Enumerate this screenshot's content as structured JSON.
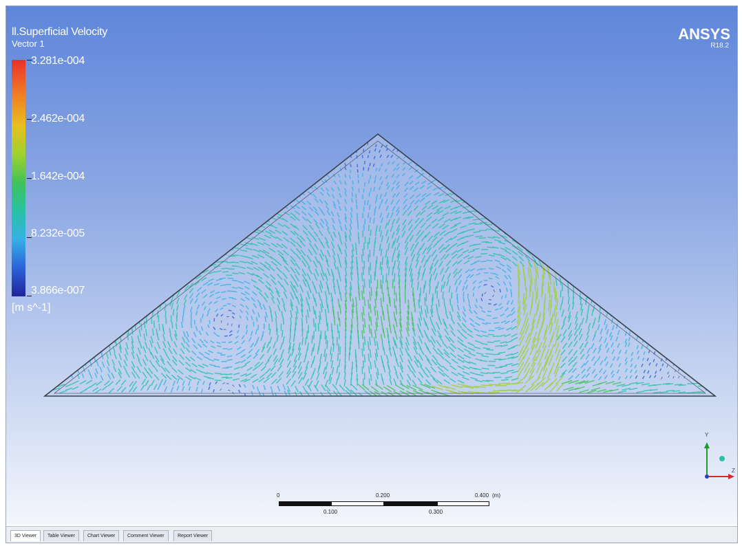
{
  "legend": {
    "title": "ll.Superficial Velocity",
    "subtitle": "Vector 1",
    "ticks": [
      "3.281e-004",
      "2.462e-004",
      "1.642e-004",
      "8.232e-005",
      "3.866e-007"
    ],
    "unit": "[m s^-1]",
    "colors": [
      "#e8312b",
      "#f07a25",
      "#e8c020",
      "#9fd12e",
      "#3fc25a",
      "#27c2a4",
      "#36b0e6",
      "#2a62d8",
      "#20249a"
    ]
  },
  "branding": {
    "logo": "ANSYS",
    "version": "R18.2"
  },
  "scale_bar": {
    "top_labels": [
      "0",
      "0.200",
      "0.400",
      "(m)"
    ],
    "bottom_labels": [
      "0.100",
      "0.300"
    ]
  },
  "axis_triad": {
    "y": "Y",
    "z": "Z",
    "icons": [
      "axis-triad-icon"
    ]
  },
  "tabs": [
    {
      "label": "3D Viewer",
      "active": true
    },
    {
      "label": "Table Viewer",
      "active": false
    },
    {
      "label": "Chart Viewer",
      "active": false
    },
    {
      "label": "Comment Viewer",
      "active": false
    },
    {
      "label": "Report Viewer",
      "active": false
    }
  ],
  "colors": {
    "domain_outline": "#3a3f4a",
    "background_top": "#5f86db",
    "background_bottom": "#f4f6fc"
  }
}
